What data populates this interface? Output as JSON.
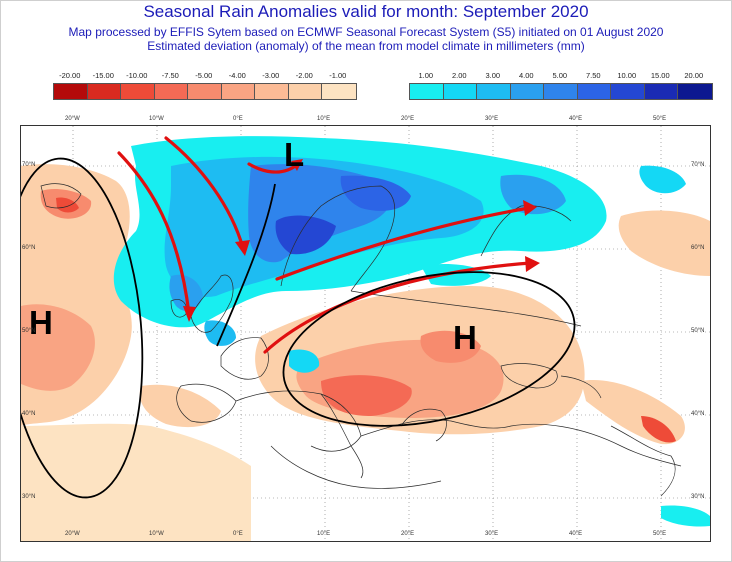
{
  "title": "Seasonal Rain Anomalies valid for month: September 2020",
  "subtitle": "Map processed by EFFIS Sytem based on ECMWF Seasonal Forecast System (S5) initiated on 01 August 2020",
  "description": "Estimated deviation (anomaly) of the mean from model climate in millimeters (mm)",
  "legend_negative": {
    "labels": [
      "-20.00",
      "-15.00",
      "-10.00",
      "-7.50",
      "-5.00",
      "-4.00",
      "-3.00",
      "-2.00",
      "-1.00"
    ],
    "colors": [
      "#b40a0a",
      "#d92a20",
      "#ee4b38",
      "#f46a55",
      "#f78b6e",
      "#f9a483",
      "#fbbb96",
      "#fcd0aa",
      "#fde3c2"
    ]
  },
  "legend_positive": {
    "labels": [
      "1.00",
      "2.00",
      "3.00",
      "4.00",
      "5.00",
      "7.50",
      "10.00",
      "15.00",
      "20.00"
    ],
    "colors": [
      "#18eef0",
      "#14d8f5",
      "#1ebcf2",
      "#2aa0ef",
      "#2f84ec",
      "#2c64e6",
      "#2447d3",
      "#1a2bb4",
      "#0c1890"
    ]
  },
  "map_labels": {
    "low_left": "H",
    "low_center": "L",
    "high_center": "H"
  },
  "axis_labels": {
    "lon_top": [
      "20°W",
      "10°W",
      "0°E",
      "10°E",
      "20°E",
      "30°E",
      "40°E",
      "50°E"
    ],
    "lon_bottom": [
      "20°W",
      "10°W",
      "0°E",
      "10°E",
      "20°E",
      "30°E",
      "40°E",
      "50°E"
    ],
    "lat_left": [
      "70°N",
      "60°N",
      "50°N",
      "40°N",
      "30°N"
    ],
    "lat_right": [
      "70°N",
      "60°N",
      "50°N",
      "40°N",
      "30°N"
    ]
  },
  "colors": {
    "title": "#1c1cb8",
    "arrow": "#e01010",
    "ellipse": "#000000"
  }
}
